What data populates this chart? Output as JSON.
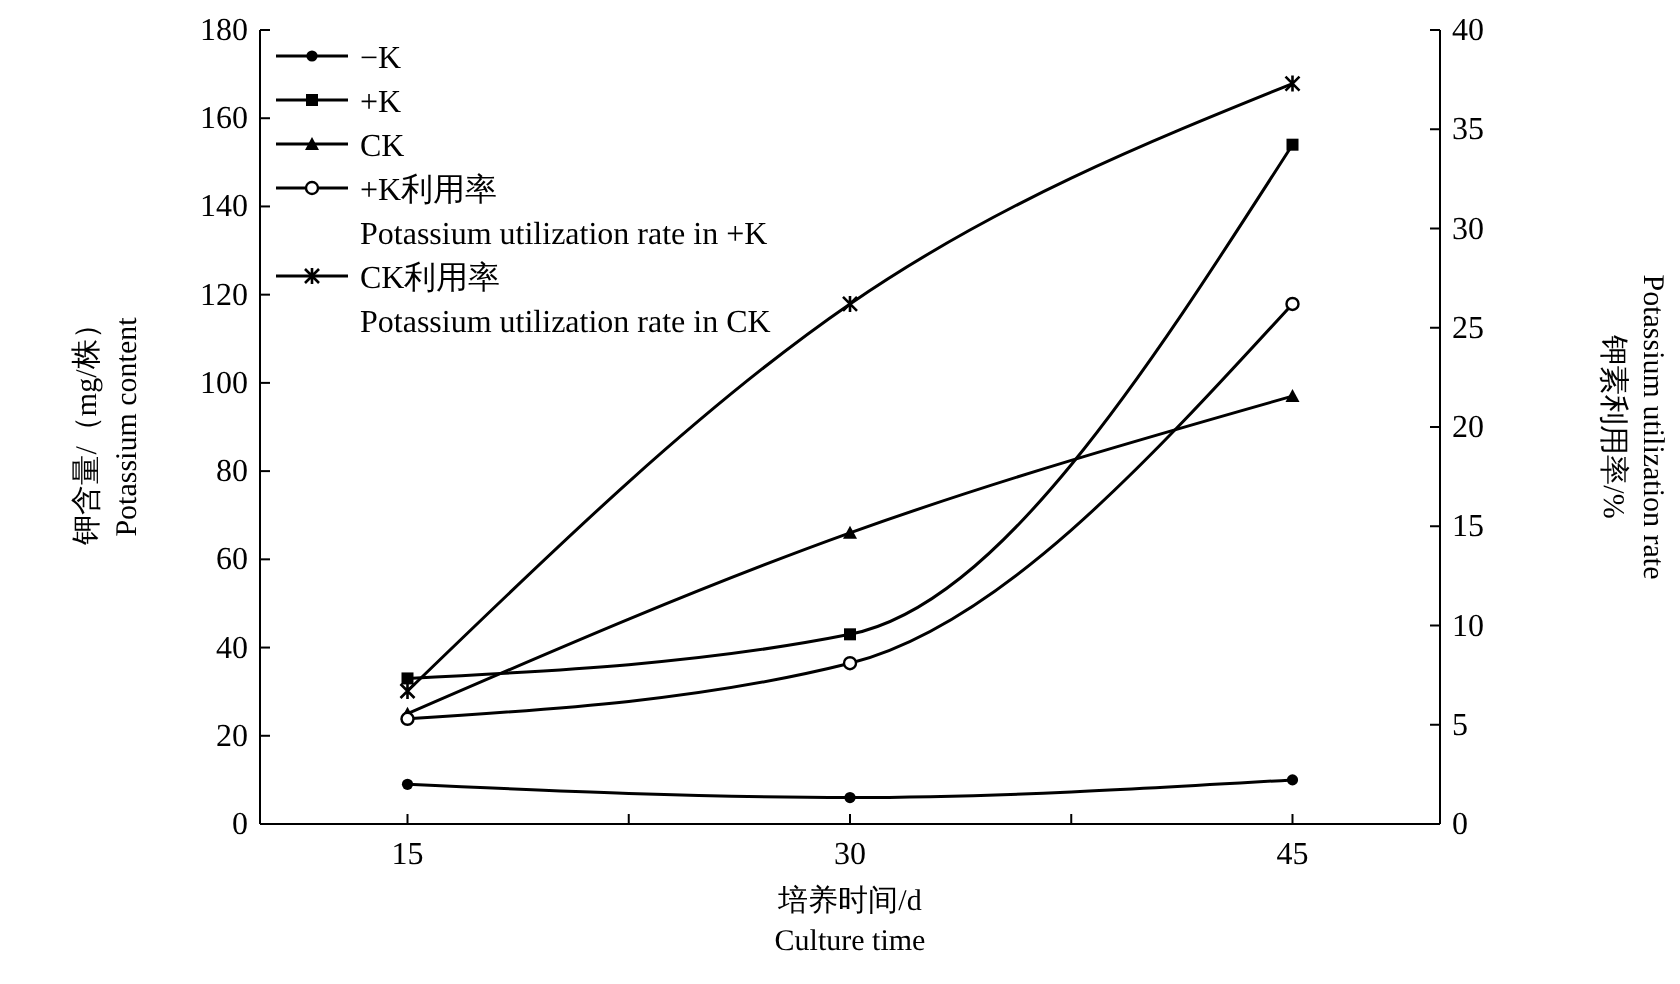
{
  "chart_data": {
    "type": "line",
    "xlabel": "培养时间/d\nCulture time",
    "ylabel": "钾含量/（mg/株）\nPotassium content",
    "y2label": "钾素利用率/%\nPotassium utilization rate",
    "x": [
      15,
      30,
      45
    ],
    "xlim": [
      10,
      50
    ],
    "xticks": [
      15,
      {
        "value": 22.5,
        "label": null
      },
      30,
      {
        "value": 37.5,
        "label": null
      },
      45
    ],
    "ylim": [
      0,
      180
    ],
    "yticks": [
      0,
      20,
      40,
      60,
      80,
      100,
      120,
      140,
      160,
      180
    ],
    "y2lim": [
      0,
      40
    ],
    "y2ticks": [
      0,
      5,
      10,
      15,
      20,
      25,
      30,
      35,
      40
    ],
    "legend": "top left",
    "grid": false,
    "line_style": "solid",
    "series": [
      {
        "name": "−K",
        "color": "#000000",
        "marker": "circle",
        "values": [
          9,
          6,
          10
        ]
      },
      {
        "name": "+K",
        "color": "#000000",
        "marker": "square",
        "values": [
          33,
          43,
          154
        ]
      },
      {
        "name": "CK",
        "color": "#000000",
        "marker": "triangle",
        "values": [
          25,
          66,
          97
        ]
      },
      {
        "name": "+K利用率\nPotassium utilization rate in +K",
        "color": "#000000",
        "marker": "circle",
        "axis": "y2",
        "values": [
          5.3,
          8.1,
          26.2
        ]
      },
      {
        "name": "CK利用率\nPotassium utilization rate in CK",
        "color": "#000000",
        "marker": "cross",
        "axis": "y2",
        "values": [
          6.7,
          26.2,
          37.3
        ]
      }
    ]
  }
}
